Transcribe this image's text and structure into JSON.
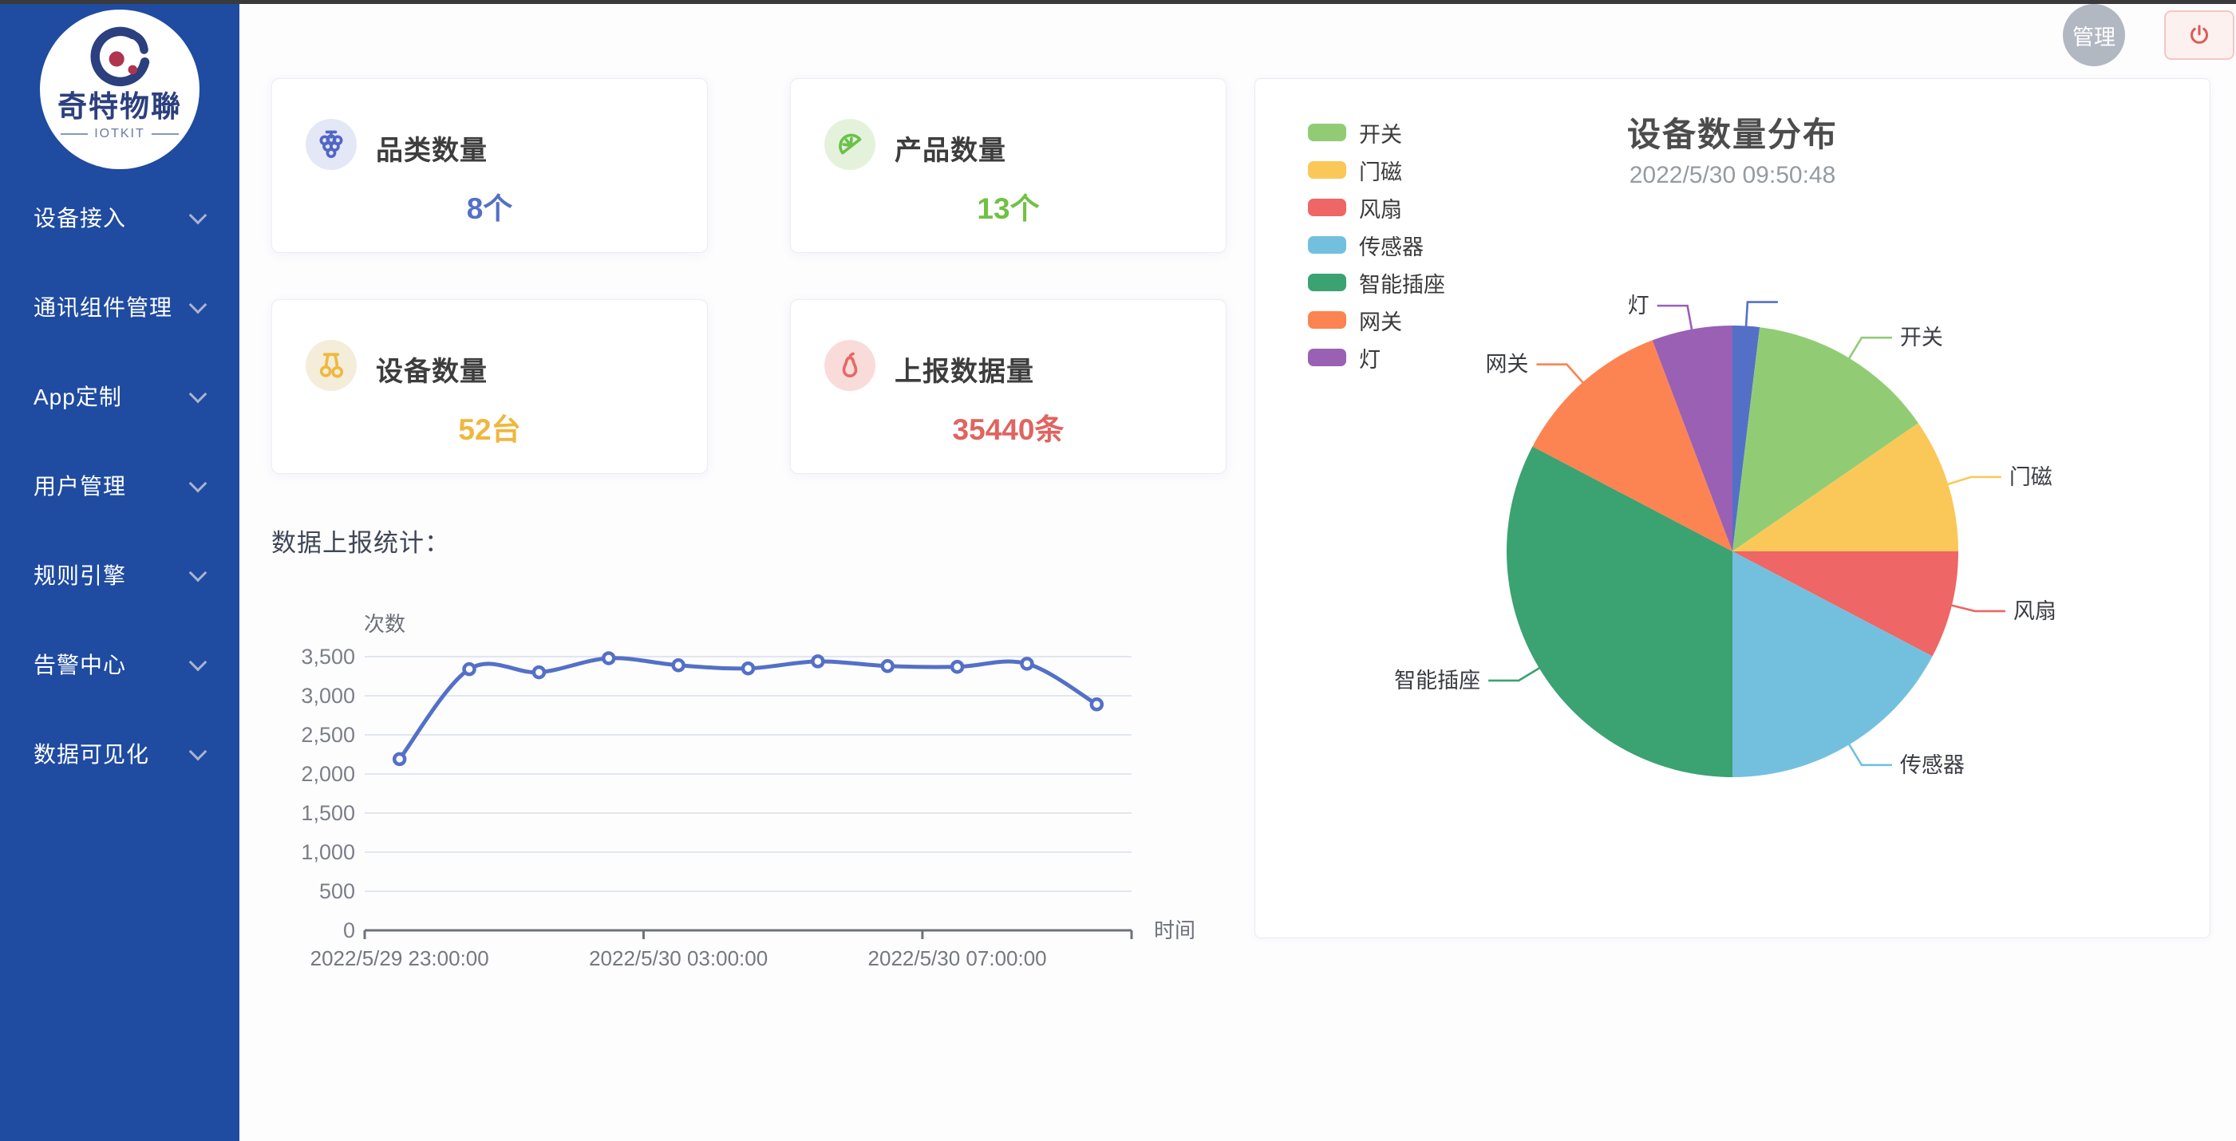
{
  "sidebar": {
    "logo": {
      "brand": "奇特物聯",
      "sub": "IOTKIT"
    },
    "items": [
      {
        "label": "设备接入"
      },
      {
        "label": "通讯组件管理"
      },
      {
        "label": "App定制"
      },
      {
        "label": "用户管理"
      },
      {
        "label": "规则引擎"
      },
      {
        "label": "告警中心"
      },
      {
        "label": "数据可见化"
      }
    ]
  },
  "header": {
    "avatar_label": "管理"
  },
  "stat_cards": [
    {
      "title": "品类数量",
      "value": "8个",
      "icon": "grapes-icon",
      "value_color": "#5470c6",
      "icon_color": "#5266c4",
      "icon_bg": "#e3e7f6"
    },
    {
      "title": "产品数量",
      "value": "13个",
      "icon": "lemon-icon",
      "value_color": "#71c143",
      "icon_color": "#6cc04b",
      "icon_bg": "#e4f2dc"
    },
    {
      "title": "设备数量",
      "value": "52台",
      "icon": "cherries-icon",
      "value_color": "#f0b73e",
      "icon_color": "#f0b83f",
      "icon_bg": "#f3edd9"
    },
    {
      "title": "上报数据量",
      "value": "35440条",
      "icon": "pear-icon",
      "value_color": "#e06460",
      "icon_color": "#e56a64",
      "icon_bg": "#f9dcda"
    }
  ],
  "report_section": {
    "title": "数据上报统计："
  },
  "chart_data": [
    {
      "type": "line",
      "name": "数据上报统计",
      "ylabel": "次数",
      "xlabel": "时间",
      "x": [
        "2022/5/29 23:00:00",
        "2022/5/30 00:00:00",
        "2022/5/30 01:00:00",
        "2022/5/30 02:00:00",
        "2022/5/30 03:00:00",
        "2022/5/30 04:00:00",
        "2022/5/30 05:00:00",
        "2022/5/30 06:00:00",
        "2022/5/30 07:00:00",
        "2022/5/30 08:00:00",
        "2022/5/30 09:00:00"
      ],
      "values": [
        2190,
        3340,
        3300,
        3480,
        3390,
        3350,
        3440,
        3380,
        3370,
        3410,
        2890
      ],
      "ylim": [
        0,
        3500
      ],
      "y_step": 500,
      "x_label_every": 4,
      "grid": true,
      "smooth": true,
      "line_color": "#5470c6"
    },
    {
      "type": "pie",
      "title": "设备数量分布",
      "subtitle": "2022/5/30 09:50:48",
      "unit": "台",
      "legend_position": "left",
      "slices": [
        {
          "name": "",
          "value": 1,
          "color": "#5470c6"
        },
        {
          "name": "开关",
          "value": 7,
          "color": "#91cc75"
        },
        {
          "name": "门磁",
          "value": 5,
          "color": "#fac858"
        },
        {
          "name": "风扇",
          "value": 4,
          "color": "#ee6666"
        },
        {
          "name": "传感器",
          "value": 9,
          "color": "#73c0de"
        },
        {
          "name": "智能插座",
          "value": 17,
          "color": "#3ba272"
        },
        {
          "name": "网关",
          "value": 6,
          "color": "#fc8452"
        },
        {
          "name": "灯",
          "value": 3,
          "color": "#9a60b4"
        }
      ],
      "legend": [
        {
          "label": "开关",
          "color": "#91cc75"
        },
        {
          "label": "门磁",
          "color": "#fac858"
        },
        {
          "label": "风扇",
          "color": "#ee6666"
        },
        {
          "label": "传感器",
          "color": "#73c0de"
        },
        {
          "label": "智能插座",
          "color": "#3ba272"
        },
        {
          "label": "网关",
          "color": "#fc8452"
        },
        {
          "label": "灯",
          "color": "#9a60b4"
        }
      ]
    }
  ]
}
